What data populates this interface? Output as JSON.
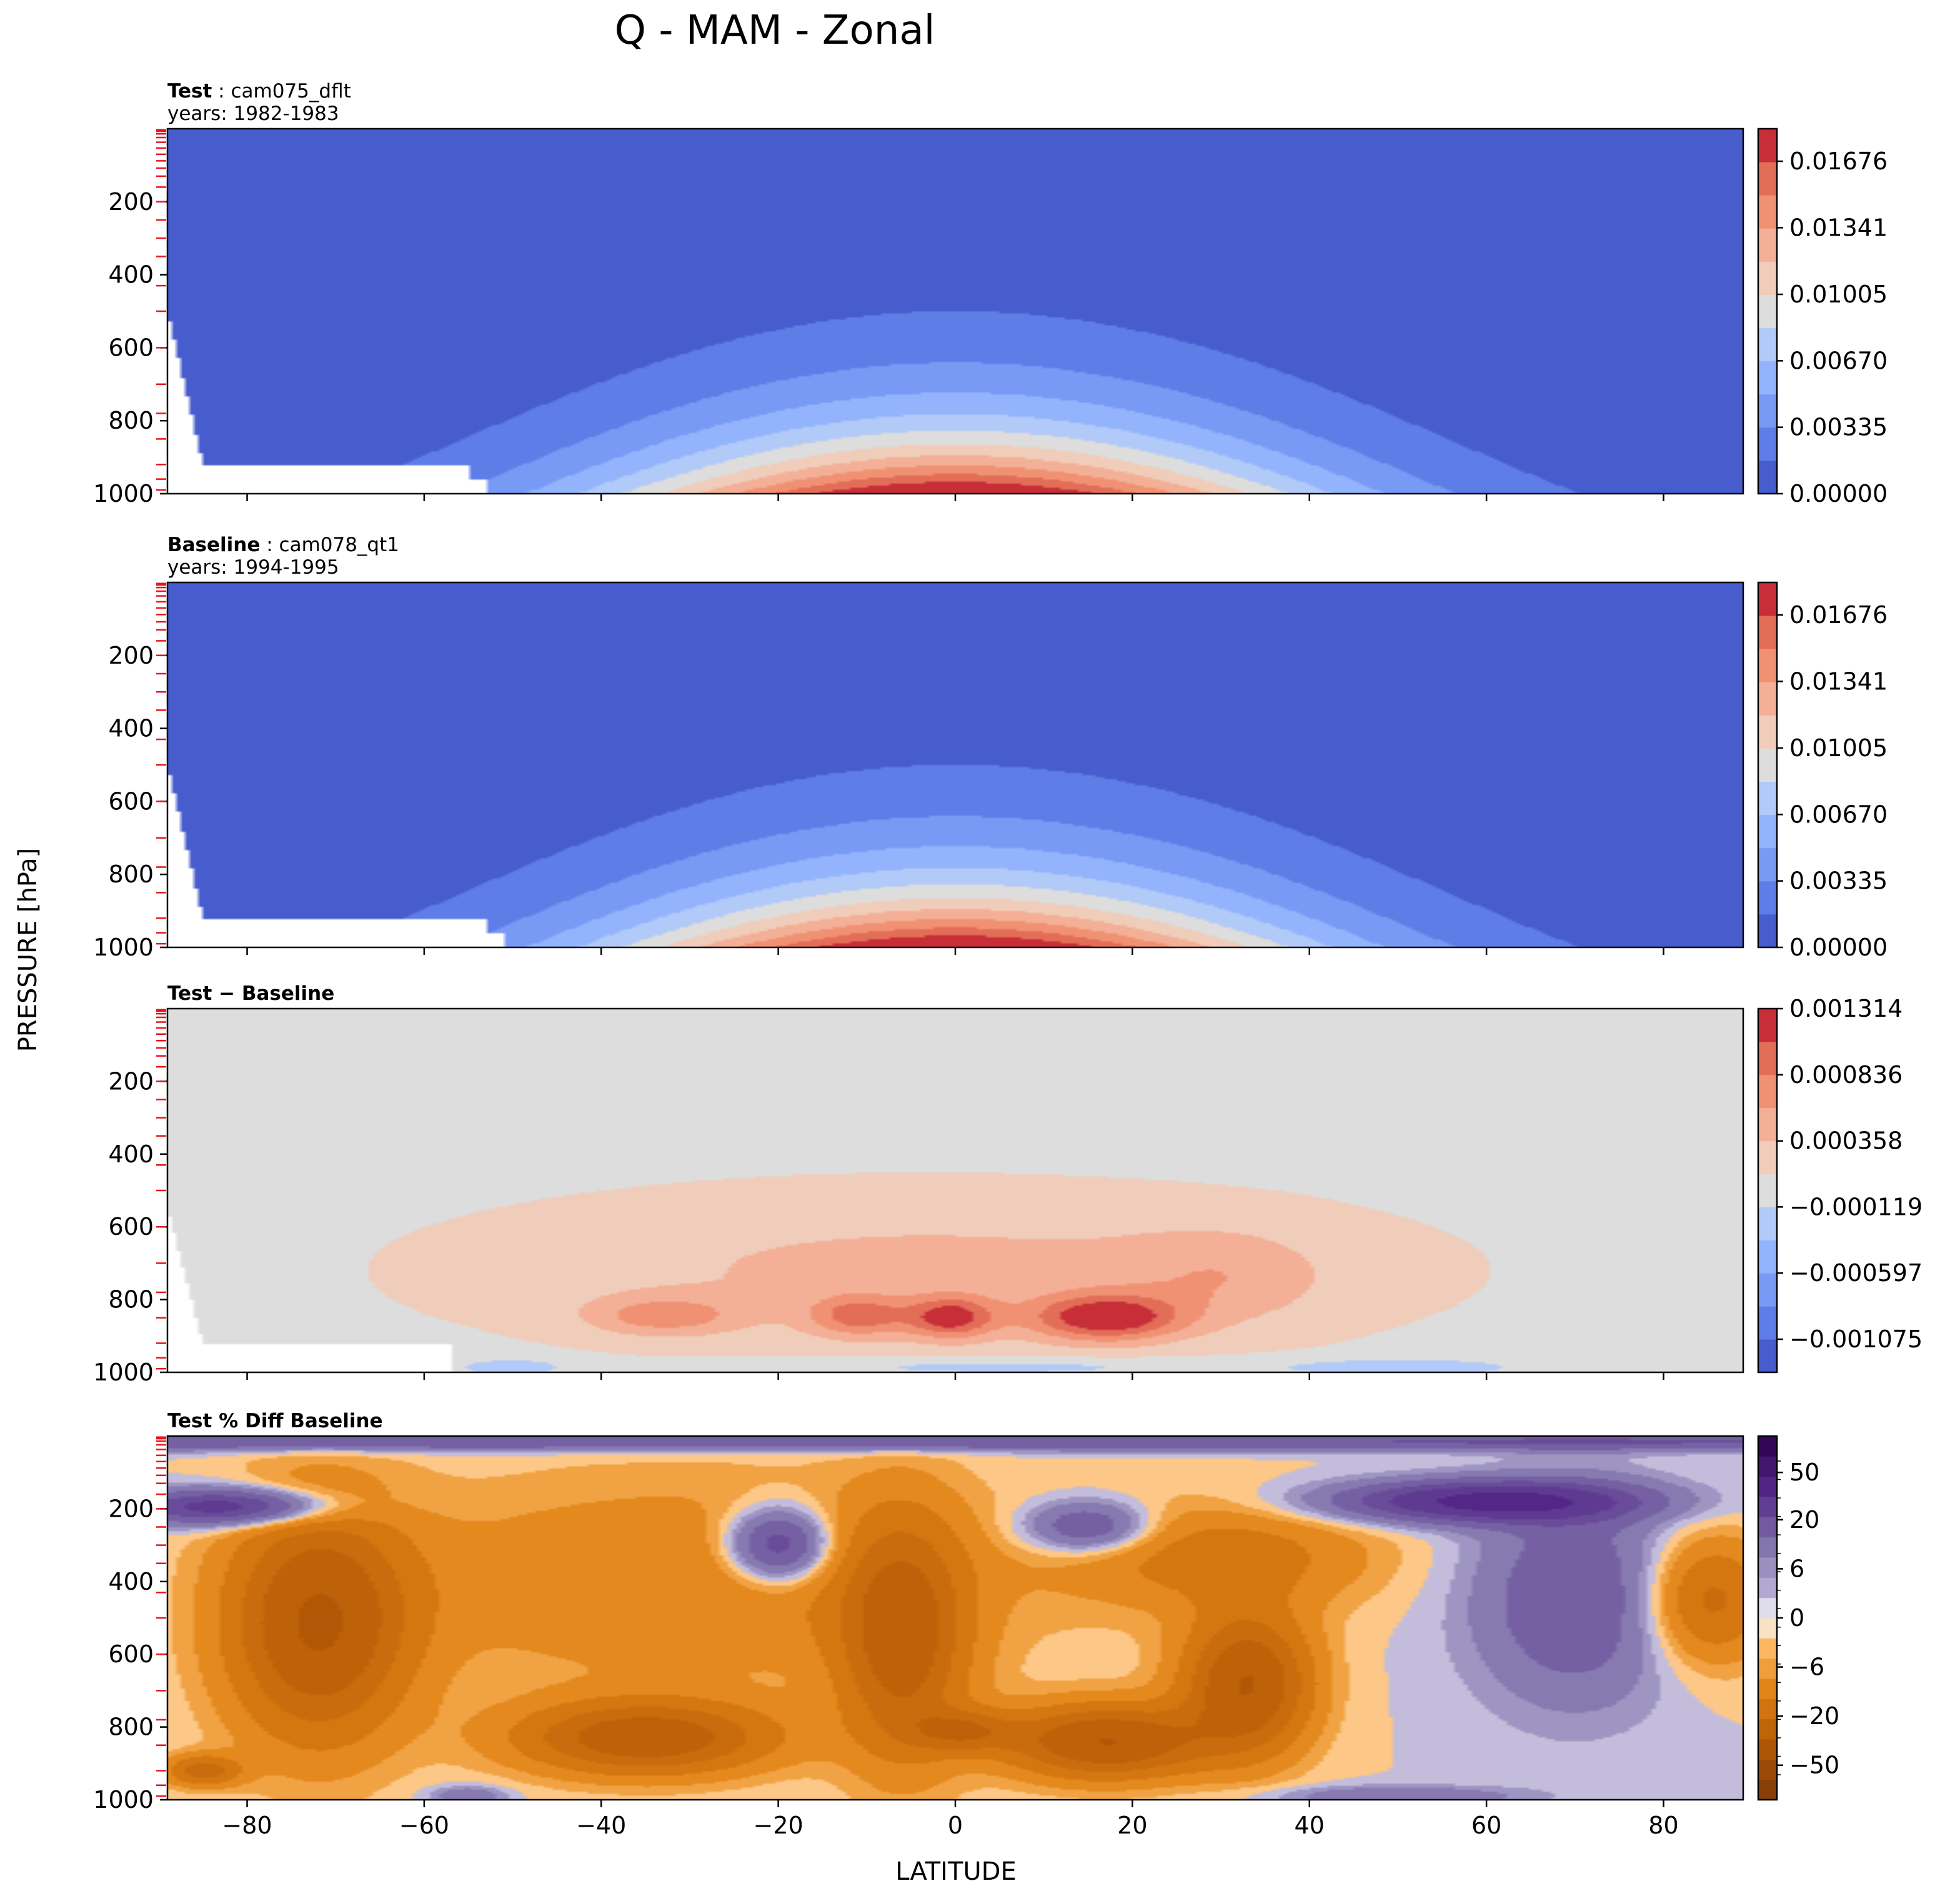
{
  "figure": {
    "title": "Q - MAM - Zonal",
    "ylabel": "PRESSURE [hPa]",
    "xlabel": "LATITUDE"
  },
  "chart_data": [
    {
      "type": "contour",
      "name": "test",
      "label_bold": "Test",
      "label_sep": ":",
      "label_rest": "cam075_dflt",
      "years": "years: 1982-1983",
      "xlim": [
        -89,
        89
      ],
      "ylim": [
        1000,
        0
      ],
      "x_ticks": [
        -80,
        -60,
        -40,
        -20,
        0,
        20,
        40,
        60,
        80
      ],
      "y_ticks": [
        200,
        400,
        600,
        800,
        1000
      ],
      "colorbar": {
        "cmap": "coolwarm",
        "range": [
          0.0,
          0.0184
        ],
        "levels": 11,
        "tick_values": [
          0.0,
          0.00335,
          0.0067,
          0.01005,
          0.01341,
          0.01676
        ],
        "tick_labels": [
          "0.00000",
          "0.00335",
          "0.00670",
          "0.01005",
          "0.01341",
          "0.01676"
        ]
      },
      "field": {
        "peak_value": 0.0175,
        "peak_lat": 0,
        "surface_p": 1000,
        "top_p": 450,
        "mask_lat": [
          -89,
          -55
        ],
        "mask_p": 920
      }
    },
    {
      "type": "contour",
      "name": "baseline",
      "label_bold": "Baseline",
      "label_sep": ":",
      "label_rest": "cam078_qt1",
      "years": "years: 1994-1995",
      "xlim": [
        -89,
        89
      ],
      "ylim": [
        1000,
        0
      ],
      "x_ticks": [
        -80,
        -60,
        -40,
        -20,
        0,
        20,
        40,
        60,
        80
      ],
      "y_ticks": [
        200,
        400,
        600,
        800,
        1000
      ],
      "colorbar": {
        "cmap": "coolwarm",
        "range": [
          0.0,
          0.0184
        ],
        "levels": 11,
        "tick_values": [
          0.0,
          0.00335,
          0.0067,
          0.01005,
          0.01341,
          0.01676
        ],
        "tick_labels": [
          "0.00000",
          "0.00335",
          "0.00670",
          "0.01005",
          "0.01341",
          "0.01676"
        ]
      },
      "field": {
        "peak_value": 0.0175,
        "peak_lat": 0,
        "surface_p": 1000,
        "top_p": 450,
        "mask_lat": [
          -89,
          -53
        ],
        "mask_p": 920
      }
    },
    {
      "type": "contour",
      "name": "difference",
      "label_bold": "Test − Baseline",
      "label_sep": "",
      "label_rest": "",
      "years": "",
      "xlim": [
        -89,
        89
      ],
      "ylim": [
        1000,
        0
      ],
      "x_ticks": [
        -80,
        -60,
        -40,
        -20,
        0,
        20,
        40,
        60,
        80
      ],
      "y_ticks": [
        200,
        400,
        600,
        800,
        1000
      ],
      "colorbar": {
        "cmap": "coolwarm",
        "range": [
          -0.001314,
          0.001314
        ],
        "levels": 11,
        "tick_values": [
          -0.001075,
          -0.000597,
          -0.000119,
          0.000358,
          0.000836,
          0.001314
        ],
        "tick_labels": [
          "−0.001075",
          "−0.000597",
          "−0.000119",
          "0.000358",
          "0.000836",
          "0.001314"
        ]
      },
      "field": {
        "peak_value": 0.00125,
        "peak_lat": 17,
        "peak_p": 850,
        "region_lat": [
          -52,
          43
        ],
        "region_p": [
          450,
          950
        ],
        "mask_lat": [
          -89,
          -57
        ],
        "mask_p": 920
      }
    },
    {
      "type": "contour",
      "name": "percent_difference",
      "label_bold": "Test % Diff Baseline",
      "label_sep": "",
      "label_rest": "",
      "years": "",
      "xlim": [
        -89,
        89
      ],
      "ylim": [
        1000,
        0
      ],
      "x_ticks": [
        -80,
        -60,
        -40,
        -20,
        0,
        20,
        40,
        60,
        80
      ],
      "x_tick_labels": [
        "−80",
        "−60",
        "−40",
        "−20",
        "0",
        "20",
        "40",
        "60",
        "80"
      ],
      "y_ticks": [
        200,
        400,
        600,
        800,
        1000
      ],
      "colorbar": {
        "cmap": "PuOr_r",
        "range": [
          -100,
          100
        ],
        "tick_values": [
          50,
          20,
          6,
          0,
          -6,
          -20,
          -50
        ],
        "tick_labels": [
          "50",
          "20",
          "6",
          "0",
          "−6",
          "−20",
          "−50"
        ]
      },
      "field": {
        "max_value": 25,
        "min_value": -22
      }
    }
  ]
}
